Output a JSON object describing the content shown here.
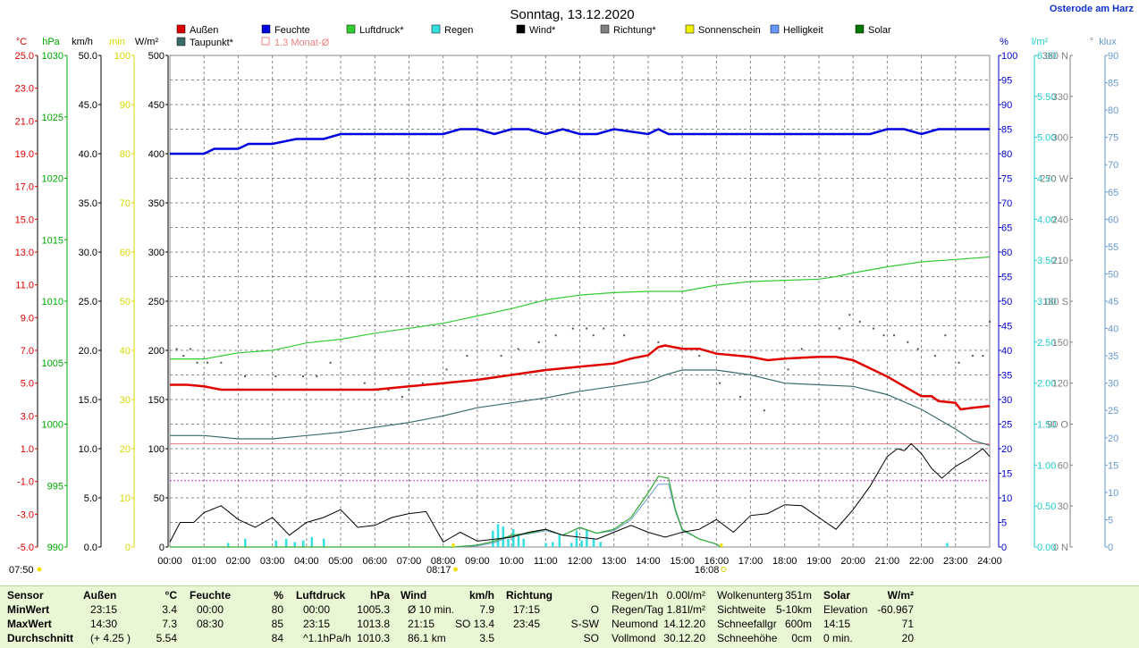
{
  "title": "Sonntag, 13.12.2020",
  "location": "Osterode am Harz",
  "legend": [
    {
      "label": "Außen",
      "color": "#e00000",
      "kind": "fill"
    },
    {
      "label": "Feuchte",
      "color": "#0000e0",
      "kind": "fill"
    },
    {
      "label": "Luftdruck*",
      "color": "#33cc33",
      "kind": "fill"
    },
    {
      "label": "Regen",
      "color": "#33e0e0",
      "kind": "fill"
    },
    {
      "label": "Wind*",
      "color": "#000000",
      "kind": "fill"
    },
    {
      "label": "Richtung*",
      "color": "#808080",
      "kind": "fill"
    },
    {
      "label": "Sonnenschein",
      "color": "#f0f000",
      "kind": "fill"
    },
    {
      "label": "Helligkeit",
      "color": "#6699ff",
      "kind": "fill"
    },
    {
      "label": "Solar",
      "color": "#007700",
      "kind": "fill"
    },
    {
      "label": "Taupunkt*",
      "color": "#3a6b6b",
      "kind": "fill"
    },
    {
      "label": "1.3 Monat-Ø",
      "color": "#f08080",
      "kind": "outline"
    }
  ],
  "axes_left": [
    {
      "unit": "°C",
      "color": "#e00000",
      "ticks": [
        "25.0",
        "23.0",
        "21.0",
        "19.0",
        "17.0",
        "15.0",
        "13.0",
        "11.0",
        "9.0",
        "7.0",
        "5.0",
        "3.0",
        "1.0",
        "-1.0",
        "-3.0",
        "-5.0"
      ]
    },
    {
      "unit": "hPa",
      "color": "#00aa00",
      "ticks": [
        "1030",
        "1025",
        "1020",
        "1015",
        "1010",
        "1005",
        "1000",
        "995",
        "990"
      ]
    },
    {
      "unit": "km/h",
      "color": "#000000",
      "ticks": [
        "50.0",
        "45.0",
        "40.0",
        "35.0",
        "30.0",
        "25.0",
        "20.0",
        "15.0",
        "10.0",
        "5.0",
        "0.0"
      ]
    },
    {
      "unit": "min",
      "color": "#d8d800",
      "ticks": [
        "100",
        "90",
        "80",
        "70",
        "60",
        "50",
        "40",
        "30",
        "20",
        "10",
        "0"
      ]
    },
    {
      "unit": "W/m²",
      "color": "#000000",
      "ticks": [
        "500",
        "450",
        "400",
        "350",
        "300",
        "250",
        "200",
        "150",
        "100",
        "50",
        "0"
      ]
    }
  ],
  "axes_right": [
    {
      "unit": "%",
      "color": "#0000cc",
      "ticks": [
        "100",
        "95",
        "90",
        "85",
        "80",
        "75",
        "70",
        "65",
        "60",
        "55",
        "50",
        "45",
        "40",
        "35",
        "30",
        "25",
        "20",
        "15",
        "10",
        "5",
        "0"
      ]
    },
    {
      "unit": "l/m²",
      "color": "#22cccc",
      "ticks": [
        "6.00",
        "5.50",
        "5.00",
        "4.50",
        "4.00",
        "3.50",
        "3.00",
        "2.50",
        "2.00",
        "1.50",
        "1.00",
        "0.50",
        "0.00"
      ]
    },
    {
      "unit": "°",
      "color": "#808080",
      "ticks": [
        "360 N",
        "330",
        "300",
        "270 W",
        "240",
        "210",
        "180 S",
        "150",
        "120",
        "90 O",
        "60",
        "30",
        "0 N"
      ]
    },
    {
      "unit": "klux",
      "color": "#6699cc",
      "ticks": [
        "90",
        "85",
        "80",
        "75",
        "70",
        "65",
        "60",
        "55",
        "50",
        "45",
        "40",
        "35",
        "30",
        "25",
        "20",
        "15",
        "10",
        "5",
        "0"
      ]
    }
  ],
  "x_ticks": [
    "00:00",
    "01:00",
    "02:00",
    "03:00",
    "04:00",
    "05:00",
    "06:00",
    "07:00",
    "08:00",
    "09:00",
    "10:00",
    "11:00",
    "12:00",
    "13:00",
    "14:00",
    "15:00",
    "16:00",
    "17:00",
    "18:00",
    "19:00",
    "20:00",
    "21:00",
    "22:00",
    "23:00",
    "24:00"
  ],
  "sun": {
    "twilight_start": "07:50",
    "sunrise": "08:17",
    "sunset": "16:08"
  },
  "chart_data": {
    "type": "line",
    "x_range": [
      0,
      24
    ],
    "reference_lines": {
      "monthly_avg_temp_c": 1.3,
      "pressure_dotted_hpa": 995.4
    },
    "series": [
      {
        "name": "Außen",
        "unit": "°C",
        "x": [
          0,
          0.5,
          1,
          1.5,
          2,
          3,
          4,
          5,
          6,
          7,
          8,
          9,
          10,
          11,
          12,
          13,
          13.5,
          14,
          14.3,
          14.5,
          15,
          15.5,
          16,
          17,
          17.5,
          18,
          19,
          19.5,
          20,
          21,
          21.5,
          22,
          22.3,
          22.5,
          23,
          23.15,
          23.5,
          24
        ],
        "values": [
          4.9,
          4.9,
          4.8,
          4.6,
          4.6,
          4.6,
          4.6,
          4.6,
          4.6,
          4.8,
          5.0,
          5.2,
          5.5,
          5.8,
          6.0,
          6.2,
          6.5,
          6.7,
          7.2,
          7.3,
          7.1,
          7.1,
          6.8,
          6.6,
          6.4,
          6.5,
          6.6,
          6.6,
          6.4,
          5.4,
          4.8,
          4.2,
          4.2,
          3.9,
          3.8,
          3.4,
          3.5,
          3.6
        ]
      },
      {
        "name": "Feuchte",
        "unit": "%",
        "x": [
          0,
          1,
          1.3,
          2,
          2.3,
          3,
          3.7,
          4.5,
          5,
          6,
          7,
          8,
          8.5,
          9,
          9.5,
          10,
          10.5,
          11,
          11.5,
          12,
          12.5,
          13,
          14,
          14.3,
          14.6,
          15,
          16,
          17,
          18,
          19,
          20,
          20.5,
          21,
          21.5,
          22,
          22.5,
          23,
          24
        ],
        "values": [
          80,
          80,
          81,
          81,
          82,
          82,
          83,
          83,
          84,
          84,
          84,
          84,
          85,
          85,
          84,
          85,
          85,
          84,
          85,
          84,
          84,
          85,
          84,
          85,
          84,
          84,
          84,
          84,
          84,
          84,
          84,
          84,
          85,
          85,
          84,
          85,
          85,
          85
        ]
      },
      {
        "name": "Luftdruck*",
        "unit": "hPa",
        "x": [
          0,
          1,
          2,
          3,
          3.5,
          4,
          5,
          6,
          7,
          8,
          9,
          10,
          11,
          12,
          13,
          14,
          15,
          16,
          17,
          18,
          19,
          19.5,
          20,
          21,
          22,
          23,
          24
        ],
        "values": [
          1005.3,
          1005.3,
          1005.8,
          1006.0,
          1006.3,
          1006.6,
          1006.9,
          1007.4,
          1007.8,
          1008.2,
          1008.8,
          1009.4,
          1010.1,
          1010.5,
          1010.7,
          1010.8,
          1010.8,
          1011.3,
          1011.6,
          1011.7,
          1011.8,
          1012.0,
          1012.3,
          1012.8,
          1013.2,
          1013.4,
          1013.6
        ]
      },
      {
        "name": "Taupunkt*",
        "unit": "°C",
        "x": [
          0,
          1,
          2,
          3,
          4,
          5,
          6,
          7,
          8,
          9,
          10,
          11,
          12,
          13,
          14,
          14.5,
          15,
          16,
          17,
          18,
          19,
          20,
          21,
          22,
          23,
          23.5,
          24
        ],
        "values": [
          1.8,
          1.8,
          1.6,
          1.6,
          1.8,
          2.0,
          2.3,
          2.6,
          3.0,
          3.5,
          3.8,
          4.1,
          4.5,
          4.8,
          5.1,
          5.5,
          5.8,
          5.8,
          5.5,
          5.0,
          4.9,
          4.8,
          4.3,
          3.4,
          2.2,
          1.5,
          1.2
        ]
      },
      {
        "name": "Wind*",
        "unit": "km/h",
        "x": [
          0,
          0.3,
          0.7,
          1,
          1.5,
          2,
          2.5,
          3,
          3.5,
          4,
          4.5,
          5,
          5.5,
          6,
          6.5,
          7,
          7.5,
          8,
          8.5,
          9,
          9.5,
          10,
          10.5,
          11,
          11.5,
          12,
          12.5,
          13,
          13.5,
          14,
          14.5,
          15,
          15.5,
          16,
          16.5,
          17,
          17.5,
          18,
          18.5,
          19,
          19.5,
          20,
          20.5,
          21,
          21.3,
          21.5,
          21.7,
          22,
          22.3,
          22.6,
          23,
          23.4,
          23.8,
          24
        ],
        "values": [
          0.5,
          2.5,
          2.5,
          3.5,
          4.2,
          2.8,
          2.0,
          3.0,
          1.2,
          2.5,
          3.0,
          3.8,
          2.0,
          2.2,
          3.0,
          3.4,
          3.6,
          0.5,
          1.5,
          0.6,
          0.8,
          1.0,
          1.5,
          1.8,
          1.2,
          1.0,
          0.8,
          1.5,
          2.2,
          1.5,
          1.0,
          1.5,
          1.8,
          2.8,
          1.5,
          3.2,
          3.4,
          4.3,
          4.2,
          3.0,
          1.8,
          3.8,
          6.2,
          9.2,
          10.0,
          9.8,
          10.5,
          9.5,
          8.0,
          7.0,
          8.2,
          9.0,
          10.0,
          9.2
        ]
      },
      {
        "name": "Solar",
        "unit": "W/m²",
        "x": [
          0,
          8.3,
          9,
          9.5,
          10,
          10.5,
          11,
          11.5,
          12,
          12.5,
          13,
          13.5,
          14,
          14.3,
          14.6,
          14.8,
          15,
          15.5,
          16,
          16.13
        ],
        "values": [
          0,
          0,
          2,
          6,
          12,
          14,
          18,
          12,
          20,
          14,
          18,
          30,
          55,
          72,
          70,
          38,
          18,
          8,
          3,
          0
        ]
      },
      {
        "name": "Helligkeit",
        "unit": "klux",
        "x": [
          0,
          8.3,
          9,
          9.5,
          10,
          10.5,
          11,
          11.5,
          12,
          12.5,
          13,
          13.5,
          14,
          14.3,
          14.6,
          14.8,
          15,
          15.5,
          16,
          16.13
        ],
        "values": [
          0,
          0,
          0.2,
          0.8,
          2.0,
          2.4,
          3.0,
          2.2,
          3.5,
          2.5,
          3.0,
          5.0,
          9.0,
          11.5,
          11.5,
          6.5,
          3.0,
          1.5,
          0.5,
          0
        ]
      },
      {
        "name": "Regen",
        "unit": "l/m²",
        "type": "bar",
        "x": [
          1.7,
          2.2,
          3.1,
          3.4,
          3.65,
          3.9,
          4.15,
          4.5,
          9.45,
          9.6,
          9.75,
          9.9,
          10.05,
          10.2,
          10.35,
          11.0,
          11.2,
          11.4,
          11.75,
          11.9,
          12.05,
          12.2,
          12.4,
          12.6,
          22.75
        ],
        "values": [
          0.05,
          0.1,
          0.08,
          0.1,
          0.06,
          0.08,
          0.12,
          0.1,
          0.2,
          0.28,
          0.25,
          0.1,
          0.22,
          0.15,
          0.1,
          0.05,
          0.06,
          0.15,
          0.05,
          0.2,
          0.08,
          0.2,
          0.1,
          0.06,
          0.05
        ]
      },
      {
        "name": "Richtung*",
        "unit": "°",
        "type": "scatter",
        "x": [
          0.2,
          0.4,
          0.6,
          0.8,
          1.1,
          1.5,
          2.2,
          3.1,
          3.9,
          4.3,
          4.7,
          5.7,
          6.1,
          6.4,
          6.8,
          7.0,
          7.4,
          8.1,
          8.7,
          9.7,
          10.2,
          10.8,
          11.3,
          11.8,
          12.2,
          12.4,
          12.7,
          13.3,
          14.3,
          15.5,
          16.1,
          16.7,
          17.4,
          18.1,
          18.5,
          19.6,
          19.9,
          20.2,
          20.6,
          20.9,
          21.2,
          21.6,
          21.9,
          22.4,
          22.7,
          23.1,
          23.5,
          23.8,
          24.0
        ],
        "values": [
          145,
          140,
          145,
          135,
          135,
          135,
          125,
          125,
          125,
          125,
          135,
          120,
          115,
          115,
          110,
          115,
          120,
          130,
          140,
          140,
          145,
          150,
          155,
          160,
          160,
          155,
          160,
          155,
          150,
          140,
          120,
          110,
          100,
          130,
          145,
          160,
          170,
          165,
          160,
          155,
          155,
          150,
          145,
          140,
          155,
          135,
          140,
          140,
          165
        ]
      }
    ]
  },
  "footer": {
    "columns": [
      {
        "header": "Sensor",
        "rows": [
          "MinWert",
          "MaxWert",
          "Durchschnitt"
        ]
      },
      {
        "header": "Außen",
        "unit": "°C",
        "rows": [
          [
            "23:15",
            "3.4"
          ],
          [
            "14:30",
            "7.3"
          ],
          [
            "(+ 4.25 )",
            "5.54"
          ]
        ]
      },
      {
        "header": "Feuchte",
        "unit": "%",
        "rows": [
          [
            "00:00",
            "80"
          ],
          [
            "08:30",
            "85"
          ],
          [
            "",
            "84"
          ]
        ]
      },
      {
        "header": "Luftdruck",
        "unit": "hPa",
        "rows": [
          [
            "00:00",
            "1005.3"
          ],
          [
            "23:15",
            "1013.8"
          ],
          [
            "^1.1hPa/h",
            "1010.3"
          ]
        ]
      },
      {
        "header": "Wind",
        "unit": "km/h",
        "rows": [
          [
            "Ø 10 min.",
            "7.9"
          ],
          [
            "21:15",
            "SO 13.4"
          ],
          [
            "86.1 km",
            "3.5"
          ]
        ]
      },
      {
        "header": "Richtung",
        "rows": [
          [
            "17:15",
            "O"
          ],
          [
            "23:45",
            "S-SW"
          ],
          [
            "",
            "SO"
          ]
        ]
      }
    ],
    "extra1": [
      [
        "Regen/1h",
        "0.00l/m²"
      ],
      [
        "Regen/Tag",
        "1.81l/m²"
      ],
      [
        "Neumond",
        "14.12.20"
      ],
      [
        "Vollmond",
        "30.12.20"
      ]
    ],
    "extra2": [
      [
        "Wolkenunterg",
        "351m"
      ],
      [
        "Sichtweite",
        "5-10km"
      ],
      [
        "Schneefallgr",
        "600m"
      ],
      [
        "Schneehöhe",
        "0cm"
      ]
    ],
    "solar": {
      "header": "Solar",
      "unit": "W/m²",
      "rows": [
        [
          "Elevation",
          "-60.967"
        ],
        [
          "14:15",
          "71"
        ],
        [
          "0 min.",
          "20"
        ]
      ]
    }
  }
}
